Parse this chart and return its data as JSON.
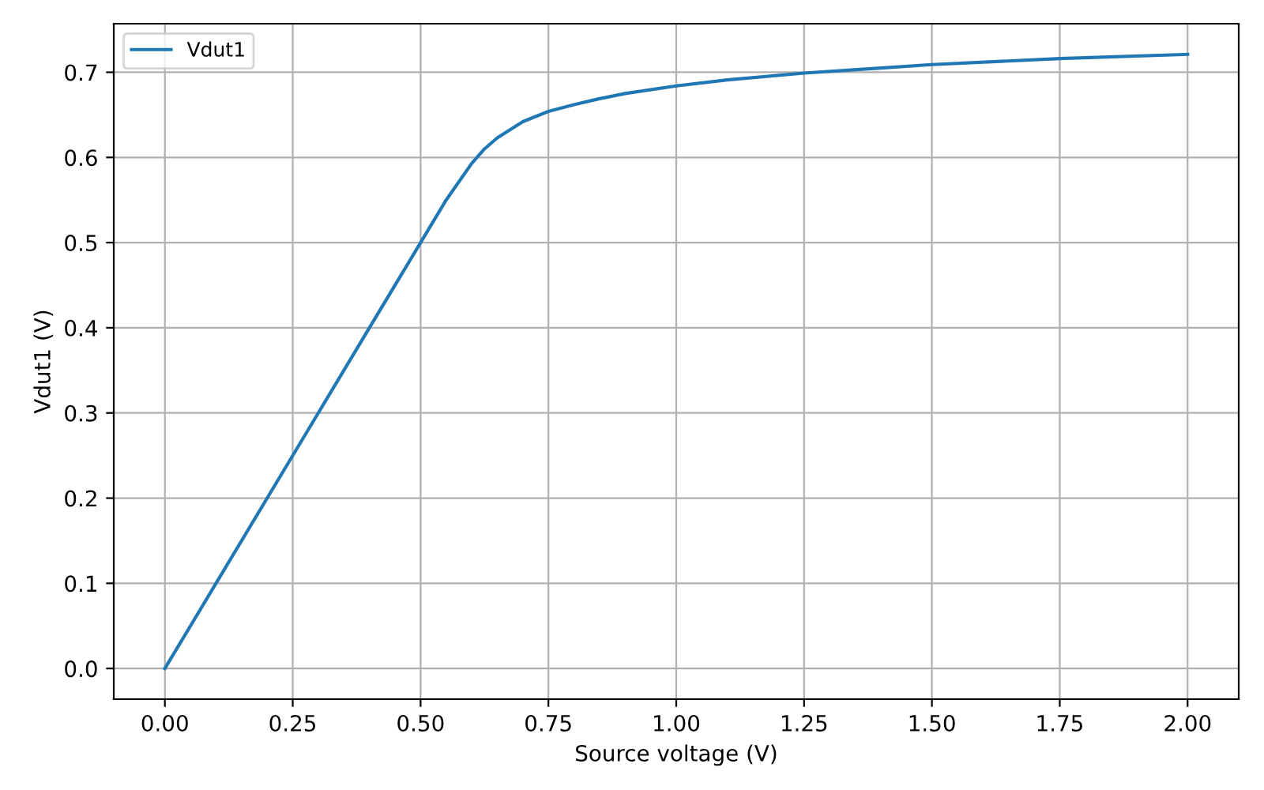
{
  "chart_data": {
    "type": "line",
    "xlabel": "Source voltage (V)",
    "ylabel": "Vdut1 (V)",
    "x": [
      0,
      0.1,
      0.2,
      0.3,
      0.4,
      0.5,
      0.55,
      0.6,
      0.625,
      0.65,
      0.7,
      0.75,
      0.8,
      0.85,
      0.9,
      1.0,
      1.1,
      1.25,
      1.4,
      1.5,
      1.75,
      2.0
    ],
    "series": [
      {
        "name": "Vdut1",
        "color": "#1f77b4",
        "values": [
          0,
          0.1,
          0.2,
          0.3,
          0.4,
          0.5,
          0.55,
          0.593,
          0.61,
          0.623,
          0.642,
          0.654,
          0.662,
          0.669,
          0.675,
          0.684,
          0.691,
          0.699,
          0.705,
          0.709,
          0.716,
          0.721
        ]
      }
    ],
    "xlim": [
      -0.1,
      2.1
    ],
    "ylim": [
      -0.036,
      0.757
    ],
    "xticks": [
      {
        "value": 0,
        "label": "0.00"
      },
      0.25,
      {
        "value": 0.5,
        "label": "0.50"
      },
      0.75,
      {
        "value": 1,
        "label": "1.00"
      },
      1.25,
      {
        "value": 1.5,
        "label": "1.50"
      },
      1.75,
      {
        "value": 2,
        "label": "2.00"
      }
    ],
    "yticks": [
      {
        "value": 0,
        "label": "0.0"
      },
      0.1,
      0.2,
      0.3,
      0.4,
      0.5,
      0.6,
      0.7
    ],
    "grid": true,
    "legend": "top left",
    "marker": "none",
    "line_style": "solid"
  }
}
